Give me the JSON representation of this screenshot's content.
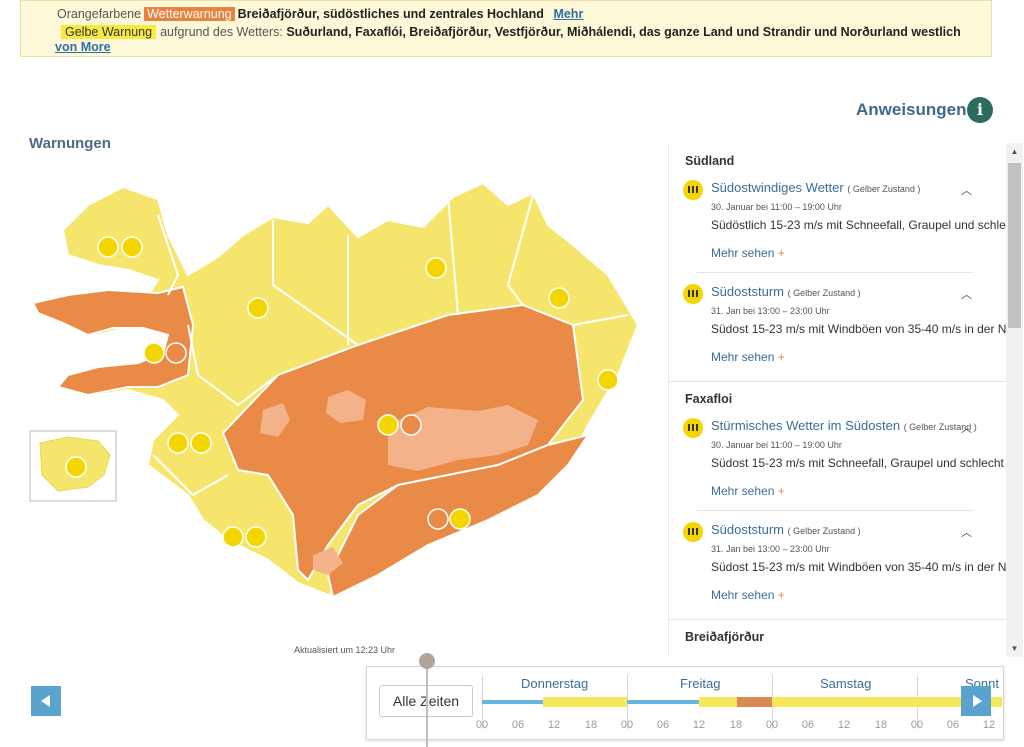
{
  "banner": {
    "orange_prefix": "Orangefarbene",
    "orange_tag": "Wetterwarnung",
    "orange_regions": "Breiðafjörður, südöstliches und zentrales Hochland",
    "orange_more": "Mehr",
    "yellow_tag": "Gelbe Warnung",
    "yellow_reason": "aufgrund des Wetters:",
    "yellow_regions": "Suðurland, Faxaflói, Breiðafjörður, Vestfjörður, Miðhálendi, das ganze Land und Strandir und Norðurland westlich",
    "yellow_more": "von More"
  },
  "instructions_label": "Anweisungen",
  "warnings_title": "Warnungen",
  "updated_label": "Aktualisiert um 12:23 Uhr",
  "panel": {
    "regions": [
      {
        "name": "Südland",
        "cards": [
          {
            "title": "Südostwindiges Wetter",
            "level": "( Gelber Zustand )",
            "time": "30. Januar bei 11:00 – 19:00 Uhr",
            "desc": "Südöstlich 15-23 m/s mit Schneefall, Graupel und schle",
            "more": "Mehr sehen"
          },
          {
            "title": "Südoststurm",
            "level": "( Gelber Zustand )",
            "time": "31. Jan bei 13:00 – 23:00 Uhr",
            "desc": "Südost 15-23 m/s mit Windböen von 35-40 m/s in der N",
            "more": "Mehr sehen"
          }
        ]
      },
      {
        "name": "Faxafloi",
        "cards": [
          {
            "title": "Stürmisches Wetter im Südosten",
            "level": "( Gelber Zustand )",
            "time": "30. Januar bei 11:00 – 19:00 Uhr",
            "desc": "Südost 15-23 m/s mit Schneefall, Graupel und schlecht",
            "more": "Mehr sehen"
          },
          {
            "title": "Südoststurm",
            "level": "( Gelber Zustand )",
            "time": "31. Jan bei 13:00 – 23:00 Uhr",
            "desc": "Südost 15-23 m/s mit Windböen von 35-40 m/s in der N",
            "more": "Mehr sehen"
          }
        ]
      },
      {
        "name": "Breiðafjörður",
        "cards": []
      }
    ]
  },
  "timeline": {
    "all_times_label": "Alle Zeiten",
    "days": [
      "Donnerstag",
      "Freitag",
      "Samstag",
      "Sonnt"
    ],
    "hours": [
      "00",
      "06",
      "12",
      "18",
      "00",
      "06",
      "12",
      "18",
      "00",
      "06",
      "12",
      "18",
      "00",
      "06",
      "12"
    ]
  },
  "icons": {
    "info": "info-icon",
    "warning": "windsock-warning-icon",
    "prev": "arrow-left-icon",
    "next": "arrow-right-icon"
  },
  "colors": {
    "orange": "#e8823e",
    "yellow": "#f7e93e",
    "link": "#3b6d99",
    "nav": "#5aa3cf"
  }
}
